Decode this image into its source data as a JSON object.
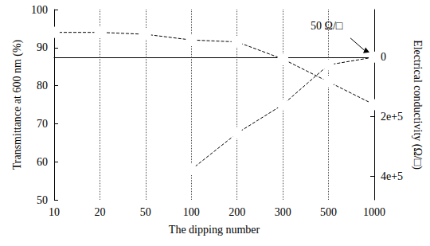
{
  "chart_data": {
    "type": "line",
    "x_label": "The dipping number",
    "y_label": "Transmittance at 600 nm (%)",
    "y2_label": "Electrical conductivity (Ω/□)",
    "categories": [
      "10",
      "20",
      "50",
      "100",
      "200",
      "300",
      "500",
      "1000"
    ],
    "series": [
      {
        "color": "#000000",
        "marker": "circle-open",
        "line_style": "dashed",
        "values": [
          94,
          94,
          93.5,
          92,
          91.5,
          87,
          81,
          75
        ]
      },
      {
        "color": "#000000",
        "marker": "circle-open",
        "line_style": "dashed",
        "axis": "y2",
        "values": [
          null,
          null,
          null,
          378000,
          256000,
          160000,
          26000,
          50
        ]
      }
    ],
    "ylim": [
      50,
      100
    ],
    "yticks": [
      50,
      60,
      70,
      80,
      90,
      100
    ],
    "y2lim": [
      480000,
      -160000
    ],
    "y2ticks": [
      0,
      {
        "value": 200000,
        "label": "2e+5"
      },
      {
        "value": 400000,
        "label": "4e+5"
      }
    ],
    "grid": true,
    "annotation": "50 Ω/□"
  }
}
